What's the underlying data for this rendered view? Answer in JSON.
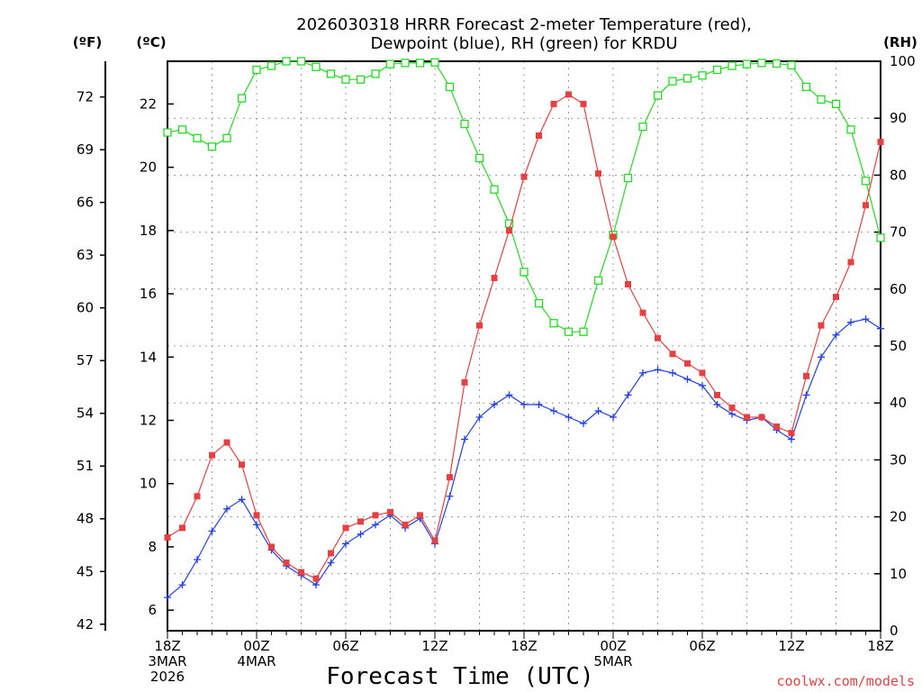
{
  "chart_data": {
    "type": "line",
    "title_line1": "2026030318 HRRR Forecast 2-meter Temperature (red),",
    "title_line2": "Dewpoint (blue), RH (green) for KRDU",
    "left_outer_unit": "(ºF)",
    "left_inner_unit": "(ºC)",
    "right_unit": "(RH)",
    "xlabel": "Forecast Time (UTC)",
    "credit": "coolwx.com/models",
    "x_ticks": [
      {
        "hour": 0,
        "lines": [
          "18Z",
          "3MAR",
          "2026"
        ]
      },
      {
        "hour": 6,
        "lines": [
          "00Z",
          "4MAR"
        ]
      },
      {
        "hour": 12,
        "lines": [
          "06Z"
        ]
      },
      {
        "hour": 18,
        "lines": [
          "12Z"
        ]
      },
      {
        "hour": 24,
        "lines": [
          "18Z"
        ]
      },
      {
        "hour": 30,
        "lines": [
          "00Z",
          "5MAR"
        ]
      },
      {
        "hour": 36,
        "lines": [
          "06Z"
        ]
      },
      {
        "hour": 42,
        "lines": [
          "12Z"
        ]
      },
      {
        "hour": 48,
        "lines": [
          "18Z"
        ]
      }
    ],
    "x_range": [
      0,
      48
    ],
    "c_range": [
      5.35,
      23.35
    ],
    "c_ticks": [
      6,
      8,
      10,
      12,
      14,
      16,
      18,
      20,
      22
    ],
    "f_ticks": [
      42,
      45,
      48,
      51,
      54,
      57,
      60,
      63,
      66,
      69,
      72
    ],
    "rh_range": [
      0,
      100
    ],
    "rh_ticks": [
      0,
      10,
      20,
      30,
      40,
      50,
      60,
      70,
      80,
      90,
      100
    ],
    "grid": true,
    "series": [
      {
        "name": "Temperature",
        "unit": "C",
        "color": "#e84040",
        "marker": "filled-square",
        "values": [
          8.3,
          8.6,
          9.6,
          10.9,
          11.3,
          10.6,
          9.0,
          8.0,
          7.5,
          7.2,
          7.0,
          7.8,
          8.6,
          8.8,
          9.0,
          9.1,
          8.7,
          9.0,
          8.2,
          10.2,
          13.2,
          15.0,
          16.5,
          18.0,
          19.7,
          21.0,
          22.0,
          22.3,
          22.0,
          19.8,
          17.8,
          16.3,
          15.4,
          14.6,
          14.1,
          13.8,
          13.5,
          12.8,
          12.4,
          12.1,
          12.1,
          11.8,
          11.6,
          13.4,
          15.0,
          15.9,
          17.0,
          18.8,
          20.8
        ]
      },
      {
        "name": "Dewpoint",
        "unit": "C",
        "color": "#2040e8",
        "marker": "plus",
        "values": [
          6.4,
          6.8,
          7.6,
          8.5,
          9.2,
          9.5,
          8.7,
          7.9,
          7.4,
          7.1,
          6.8,
          7.5,
          8.1,
          8.4,
          8.7,
          9.0,
          8.6,
          8.9,
          8.1,
          9.6,
          11.4,
          12.1,
          12.5,
          12.8,
          12.5,
          12.5,
          12.3,
          12.1,
          11.9,
          12.3,
          12.1,
          12.8,
          13.5,
          13.6,
          13.5,
          13.3,
          13.1,
          12.5,
          12.2,
          12.0,
          12.1,
          11.7,
          11.4,
          12.8,
          14.0,
          14.7,
          15.1,
          15.2,
          14.9
        ]
      },
      {
        "name": "RH",
        "unit": "%",
        "color": "#22dd22",
        "marker": "open-square",
        "values": [
          87.5,
          88,
          86.5,
          85,
          86.5,
          93.5,
          98.5,
          99.2,
          100,
          100,
          99,
          97.8,
          96.8,
          96.8,
          97.8,
          99.5,
          99.7,
          99.7,
          99.8,
          95.5,
          89,
          83,
          77.5,
          71.5,
          63,
          57.5,
          54,
          52.5,
          52.5,
          61.5,
          69.5,
          79.5,
          88.5,
          94,
          96.5,
          97,
          97.5,
          98.5,
          99.2,
          99.5,
          99.7,
          99.6,
          99.3,
          95.5,
          93.3,
          92.5,
          88,
          79,
          69
        ]
      }
    ]
  }
}
